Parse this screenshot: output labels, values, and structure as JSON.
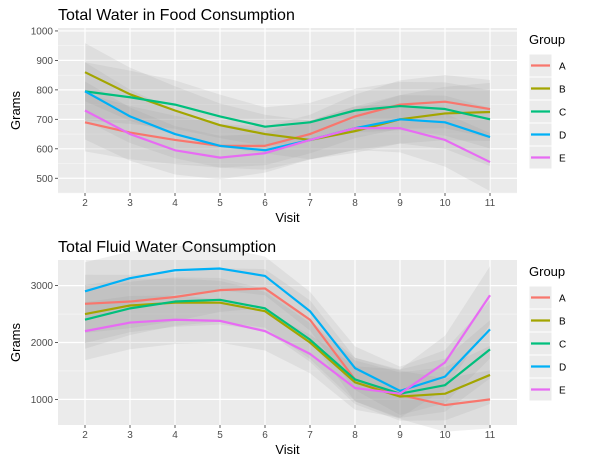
{
  "chart_data": [
    {
      "type": "line",
      "title": "Total Water in Food Consumption",
      "xlabel": "Visit",
      "ylabel": "Grams",
      "x": [
        2,
        3,
        4,
        5,
        6,
        7,
        8,
        9,
        10,
        11
      ],
      "ylim": [
        450,
        1010
      ],
      "yticks": [
        500,
        600,
        700,
        800,
        900,
        1000
      ],
      "grid": true,
      "legend": {
        "title": "Group",
        "position": "right"
      },
      "series": [
        {
          "name": "A",
          "color": "#F8766D",
          "values": [
            690,
            655,
            630,
            610,
            610,
            650,
            710,
            750,
            760,
            735
          ]
        },
        {
          "name": "B",
          "color": "#A3A500",
          "values": [
            860,
            785,
            730,
            680,
            650,
            630,
            660,
            700,
            720,
            725
          ]
        },
        {
          "name": "C",
          "color": "#00BF7D",
          "values": [
            795,
            775,
            750,
            710,
            675,
            690,
            730,
            745,
            735,
            700
          ]
        },
        {
          "name": "D",
          "color": "#00B0F6",
          "values": [
            795,
            710,
            650,
            610,
            595,
            630,
            670,
            700,
            690,
            640
          ]
        },
        {
          "name": "E",
          "color": "#E76BF3",
          "values": [
            730,
            650,
            595,
            570,
            585,
            630,
            670,
            670,
            630,
            555
          ]
        }
      ]
    },
    {
      "type": "line",
      "title": "Total Fluid Water Consumption",
      "xlabel": "Visit",
      "ylabel": "Grams",
      "x": [
        2,
        3,
        4,
        5,
        6,
        7,
        8,
        9,
        10,
        11
      ],
      "ylim": [
        550,
        3450
      ],
      "yticks": [
        1000,
        2000,
        3000
      ],
      "grid": true,
      "legend": {
        "title": "Group",
        "position": "right"
      },
      "series": [
        {
          "name": "A",
          "color": "#F8766D",
          "values": [
            2680,
            2720,
            2800,
            2920,
            2950,
            2400,
            1350,
            1080,
            900,
            1000
          ]
        },
        {
          "name": "B",
          "color": "#A3A500",
          "values": [
            2500,
            2650,
            2700,
            2700,
            2550,
            2000,
            1300,
            1050,
            1100,
            1430
          ]
        },
        {
          "name": "C",
          "color": "#00BF7D",
          "values": [
            2400,
            2600,
            2720,
            2750,
            2600,
            2050,
            1350,
            1100,
            1250,
            1880
          ]
        },
        {
          "name": "D",
          "color": "#00B0F6",
          "values": [
            2900,
            3130,
            3270,
            3300,
            3170,
            2550,
            1550,
            1150,
            1400,
            2230
          ]
        },
        {
          "name": "E",
          "color": "#E76BF3",
          "values": [
            2200,
            2350,
            2400,
            2380,
            2200,
            1800,
            1200,
            1100,
            1650,
            2830
          ]
        }
      ]
    }
  ]
}
